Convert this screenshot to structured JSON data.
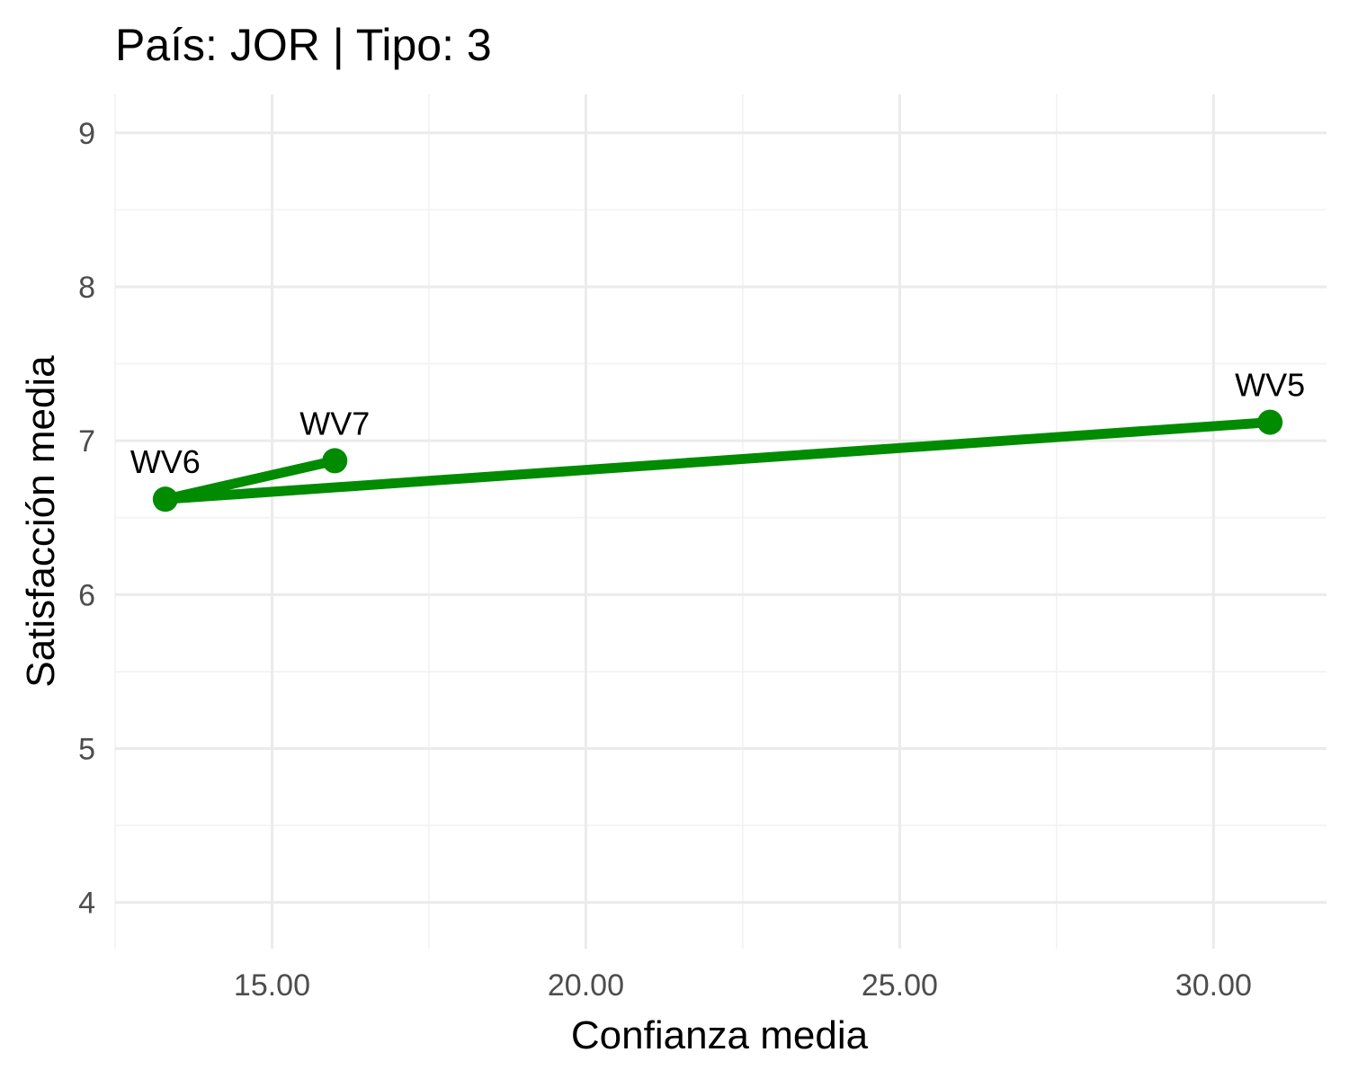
{
  "chart_data": {
    "type": "line",
    "title": "País: JOR | Tipo: 3",
    "xlabel": "Confianza media",
    "ylabel": "Satisfacción media",
    "xlim": [
      12.5,
      31.8
    ],
    "ylim": [
      3.7,
      9.25
    ],
    "x_ticks": [
      15,
      20,
      25,
      30
    ],
    "x_tick_labels": [
      "15.00",
      "20.00",
      "25.00",
      "30.00"
    ],
    "y_ticks": [
      4,
      5,
      6,
      7,
      8,
      9
    ],
    "y_tick_labels": [
      "4",
      "5",
      "6",
      "7",
      "8",
      "9"
    ],
    "grid": true,
    "legend": "none",
    "series": [
      {
        "color": "#008b00",
        "points": [
          {
            "label": "WV5",
            "x": 30.9,
            "y": 7.12
          },
          {
            "label": "WV6",
            "x": 13.3,
            "y": 6.62
          },
          {
            "label": "WV7",
            "x": 16.0,
            "y": 6.87
          }
        ]
      }
    ]
  }
}
